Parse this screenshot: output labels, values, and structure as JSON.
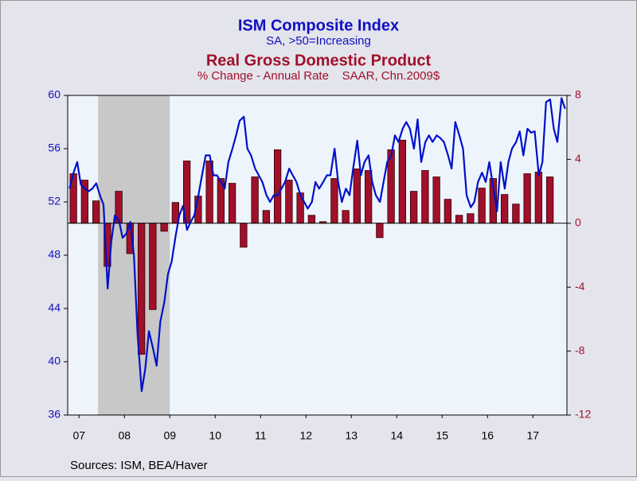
{
  "chart_data": {
    "type": "combo",
    "title": "ISM Composite Index",
    "subtitle": "SA, >50=Increasing",
    "title2": "Real Gross Domestic Product",
    "subtitle2": "% Change - Annual Rate    SAAR, Chn.2009$",
    "source": "Sources:  ISM, BEA/Haver",
    "xlim": [
      2007.25,
      2018.25
    ],
    "xticks": [
      {
        "value": 2007.5,
        "label": "07"
      },
      {
        "value": 2008.5,
        "label": "08"
      },
      {
        "value": 2009.5,
        "label": "09"
      },
      {
        "value": 2010.5,
        "label": "10"
      },
      {
        "value": 2011.5,
        "label": "11"
      },
      {
        "value": 2012.5,
        "label": "12"
      },
      {
        "value": 2013.5,
        "label": "13"
      },
      {
        "value": 2014.5,
        "label": "14"
      },
      {
        "value": 2015.5,
        "label": "15"
      },
      {
        "value": 2016.5,
        "label": "16"
      },
      {
        "value": 2017.5,
        "label": "17"
      }
    ],
    "ylim": [
      36,
      60
    ],
    "yticks": [
      36,
      40,
      44,
      48,
      52,
      56,
      60
    ],
    "y2lim": [
      -12,
      8
    ],
    "y2ticks": [
      -12,
      -8,
      -4,
      0,
      4,
      8
    ],
    "shaded_x": [
      2007.92,
      2009.5
    ],
    "series": [
      {
        "name": "Real Gross Domestic Product",
        "type": "bar",
        "axis": "y2",
        "color": "#a0102a",
        "x": [
          2007.375,
          2007.625,
          2007.875,
          2008.125,
          2008.375,
          2008.625,
          2008.875,
          2009.125,
          2009.375,
          2009.625,
          2009.875,
          2010.125,
          2010.375,
          2010.625,
          2010.875,
          2011.125,
          2011.375,
          2011.625,
          2011.875,
          2012.125,
          2012.375,
          2012.625,
          2012.875,
          2013.125,
          2013.375,
          2013.625,
          2013.875,
          2014.125,
          2014.375,
          2014.625,
          2014.875,
          2015.125,
          2015.375,
          2015.625,
          2015.875,
          2016.125,
          2016.375,
          2016.625,
          2016.875,
          2017.125,
          2017.375,
          2017.625,
          2017.875
        ],
        "values": [
          3.1,
          2.7,
          1.4,
          -2.7,
          2.0,
          -1.9,
          -8.2,
          -5.4,
          -0.5,
          1.3,
          3.9,
          1.7,
          3.9,
          2.8,
          2.5,
          -1.5,
          2.9,
          0.8,
          4.6,
          2.7,
          1.9,
          0.5,
          0.1,
          2.8,
          0.8,
          3.4,
          3.3,
          -0.9,
          4.6,
          5.2,
          2.0,
          3.3,
          2.9,
          1.5,
          0.5,
          0.6,
          2.2,
          2.8,
          1.8,
          1.2,
          3.1,
          3.2,
          2.9
        ]
      },
      {
        "name": "ISM Composite Index",
        "type": "line",
        "axis": "y",
        "color": "#0010c8",
        "x": [
          2007.29,
          2007.38,
          2007.46,
          2007.54,
          2007.63,
          2007.71,
          2007.79,
          2007.88,
          2007.96,
          2008.04,
          2008.13,
          2008.21,
          2008.29,
          2008.38,
          2008.46,
          2008.54,
          2008.63,
          2008.71,
          2008.79,
          2008.88,
          2008.96,
          2009.04,
          2009.13,
          2009.21,
          2009.29,
          2009.38,
          2009.46,
          2009.54,
          2009.63,
          2009.71,
          2009.79,
          2009.88,
          2009.96,
          2010.04,
          2010.13,
          2010.21,
          2010.29,
          2010.38,
          2010.46,
          2010.54,
          2010.63,
          2010.71,
          2010.79,
          2010.88,
          2010.96,
          2011.04,
          2011.13,
          2011.21,
          2011.29,
          2011.38,
          2011.46,
          2011.54,
          2011.63,
          2011.71,
          2011.79,
          2011.88,
          2011.96,
          2012.04,
          2012.13,
          2012.21,
          2012.29,
          2012.38,
          2012.46,
          2012.54,
          2012.63,
          2012.71,
          2012.79,
          2012.88,
          2012.96,
          2013.04,
          2013.13,
          2013.21,
          2013.29,
          2013.38,
          2013.46,
          2013.54,
          2013.63,
          2013.71,
          2013.79,
          2013.88,
          2013.96,
          2014.04,
          2014.13,
          2014.21,
          2014.29,
          2014.38,
          2014.46,
          2014.54,
          2014.63,
          2014.71,
          2014.79,
          2014.88,
          2014.96,
          2015.04,
          2015.13,
          2015.21,
          2015.29,
          2015.38,
          2015.46,
          2015.54,
          2015.63,
          2015.71,
          2015.79,
          2015.88,
          2015.96,
          2016.04,
          2016.13,
          2016.21,
          2016.29,
          2016.38,
          2016.46,
          2016.54,
          2016.63,
          2016.71,
          2016.79,
          2016.88,
          2016.96,
          2017.04,
          2017.13,
          2017.21,
          2017.29,
          2017.38,
          2017.46,
          2017.54,
          2017.63,
          2017.71,
          2017.79,
          2017.88,
          2017.96,
          2018.04,
          2018.13,
          2018.21
        ],
        "values": [
          53.0,
          54.2,
          55.0,
          53.3,
          53.0,
          52.8,
          53.0,
          53.4,
          52.5,
          51.8,
          45.5,
          49.0,
          51.0,
          50.6,
          49.3,
          49.6,
          50.5,
          48.0,
          42.0,
          37.8,
          39.5,
          42.3,
          41.0,
          39.7,
          43.0,
          44.5,
          46.6,
          47.5,
          49.5,
          51.0,
          51.7,
          49.9,
          50.5,
          51.0,
          52.5,
          54.0,
          55.5,
          55.5,
          54.0,
          54.0,
          53.5,
          53.0,
          55.0,
          56.0,
          57.0,
          58.1,
          58.4,
          56.0,
          55.5,
          54.5,
          54.0,
          53.5,
          52.5,
          52.0,
          52.5,
          52.5,
          53.0,
          53.5,
          54.5,
          54.0,
          53.5,
          52.5,
          52.0,
          51.5,
          52.0,
          53.5,
          53.0,
          53.5,
          54.0,
          54.0,
          56.0,
          53.5,
          52.0,
          53.0,
          52.5,
          54.5,
          56.6,
          54.0,
          55.0,
          55.5,
          53.5,
          52.5,
          52.0,
          53.5,
          55.0,
          55.5,
          57.0,
          56.5,
          57.5,
          58.0,
          57.5,
          56.0,
          58.2,
          55.0,
          56.5,
          57.0,
          56.5,
          57.0,
          56.8,
          56.5,
          55.5,
          54.5,
          58.0,
          57.0,
          56.0,
          52.5,
          51.6,
          52.0,
          53.5,
          54.2,
          53.5,
          55.0,
          53.0,
          51.3,
          55.0,
          53.0,
          55.0,
          56.0,
          56.5,
          57.3,
          55.5,
          57.5,
          57.2,
          57.3,
          54.0,
          55.0,
          59.5,
          59.7,
          57.5,
          56.5,
          59.8,
          59.0
        ]
      }
    ]
  }
}
